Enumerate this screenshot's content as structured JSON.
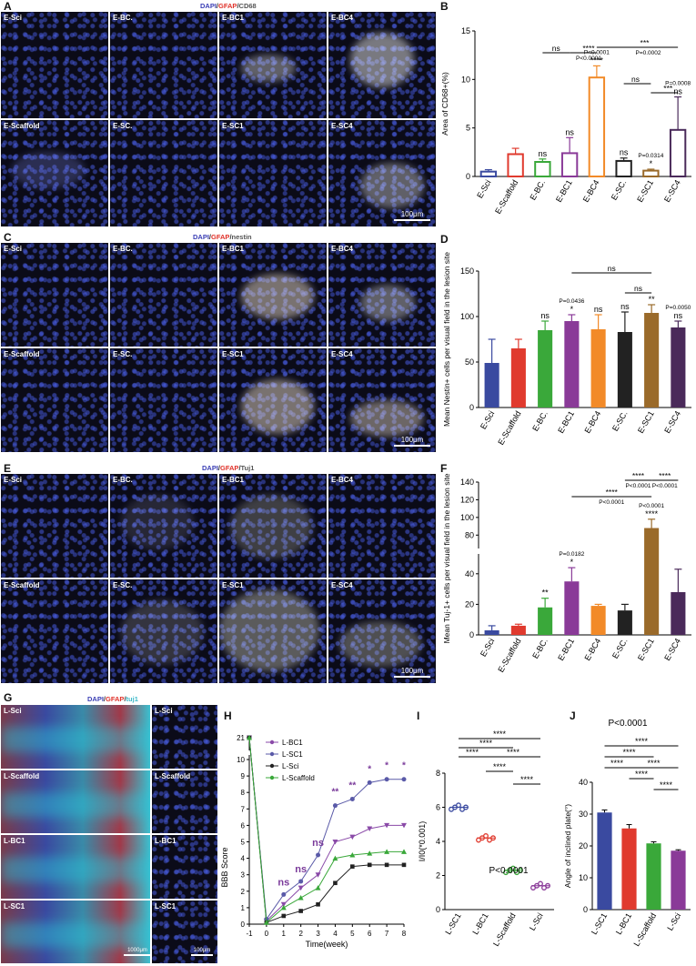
{
  "panels": {
    "A": {
      "letter": "A",
      "stain": [
        "DAPI",
        "GFAP",
        "CD68"
      ],
      "tiles": [
        "E-Sci",
        "E-BC.",
        "E-BC1",
        "E-BC4",
        "E-Scaffold",
        "E-SC.",
        "E-SC1",
        "E-SC4"
      ],
      "scale": "100μm"
    },
    "C": {
      "letter": "C",
      "stain": [
        "DAPI",
        "GFAP",
        "nestin"
      ],
      "tiles": [
        "E-Sci",
        "E-BC.",
        "E-BC1",
        "E-BC4",
        "E-Scaffold",
        "E-SC.",
        "E-SC1",
        "E-SC4"
      ],
      "scale": "100μm"
    },
    "E": {
      "letter": "E",
      "stain": [
        "DAPI",
        "GFAP",
        "Tuj1"
      ],
      "tiles": [
        "E-Sci",
        "E-BC.",
        "E-BC1",
        "E-BC4",
        "E-Scaffold",
        "E-SC.",
        "E-SC1",
        "E-SC4"
      ],
      "scale": "100μm"
    },
    "G": {
      "letter": "G",
      "stain": [
        "DAPI",
        "GFAP",
        "tuj1"
      ],
      "tiles": [
        "L-Sci",
        "L-Sci",
        "L-Scaffold",
        "L-Scaffold",
        "L-BC1",
        "L-BC1",
        "L-SC1",
        "L-SC1"
      ],
      "scale_left": "1000μm",
      "scale_right": "100μm"
    },
    "B": {
      "letter": "B"
    },
    "D": {
      "letter": "D"
    },
    "F": {
      "letter": "F"
    },
    "H": {
      "letter": "H"
    },
    "I": {
      "letter": "I"
    },
    "J": {
      "letter": "J"
    }
  },
  "chart_data": [
    {
      "id": "B",
      "type": "bar",
      "categories": [
        "E-Sci",
        "E-Scaffold",
        "E-BC.",
        "E-BC1",
        "E-BC4",
        "E-SC.",
        "E-SC1",
        "E-SC4"
      ],
      "values": [
        0.5,
        2.3,
        1.5,
        2.4,
        10.2,
        1.6,
        0.6,
        4.8
      ],
      "errors": [
        0.2,
        0.6,
        0.3,
        1.6,
        1.2,
        0.3,
        0.15,
        3.4
      ],
      "colors": [
        "#3a4aa0",
        "#e03a2e",
        "#3aa83a",
        "#8a3a98",
        "#f28a28",
        "#222222",
        "#9a6a2a",
        "#4a2a5a"
      ],
      "bar_labels": [
        "",
        "",
        "ns",
        "ns",
        "****",
        "ns",
        "*",
        "ns"
      ],
      "bar_pvals": [
        "",
        "",
        "",
        "",
        "P<0.0001",
        "",
        "P=0.0314",
        "P=0.0008"
      ],
      "ylabel": "Area of CD68+(%)",
      "ylim": [
        0,
        15
      ],
      "yticks": [
        0,
        5,
        10,
        15
      ],
      "brackets": [
        {
          "text": "ns",
          "p": ""
        },
        {
          "text": "****",
          "p": "P<0.0001"
        },
        {
          "text": "***",
          "p": "P=0.0002"
        },
        {
          "text": "ns",
          "p": ""
        },
        {
          "text": "***",
          "p": ""
        }
      ]
    },
    {
      "id": "D",
      "type": "bar",
      "categories": [
        "E-Sci",
        "E-Scaffold",
        "E-BC.",
        "E-BC1",
        "E-BC4",
        "E-SC.",
        "E-SC1",
        "E-SC4"
      ],
      "values": [
        49,
        65,
        85,
        95,
        86,
        83,
        104,
        88
      ],
      "errors": [
        26,
        10,
        10,
        7,
        16,
        22,
        9,
        7
      ],
      "colors": [
        "#3a4aa0",
        "#e03a2e",
        "#3aa83a",
        "#8a3a98",
        "#f28a28",
        "#222222",
        "#9a6a2a",
        "#4a2a5a"
      ],
      "bar_labels": [
        "",
        "",
        "ns",
        "*",
        "ns",
        "ns",
        "**",
        "ns"
      ],
      "bar_pvals": [
        "",
        "",
        "",
        "P=0.0436",
        "",
        "",
        "",
        "P=0.0050"
      ],
      "ylabel": "Mean Nestin+ cells per visual field in the lesion site",
      "ylim": [
        0,
        150
      ],
      "yticks": [
        0,
        50,
        100,
        150
      ],
      "brackets": [
        {
          "text": "ns",
          "p": ""
        },
        {
          "text": "ns",
          "p": ""
        }
      ]
    },
    {
      "id": "F",
      "type": "bar",
      "categories": [
        "E-Sci",
        "E-Scaffold",
        "E-BC.",
        "E-BC1",
        "E-BC4",
        "E-SC.",
        "E-SC1",
        "E-SC4"
      ],
      "values": [
        3,
        6,
        18,
        35,
        19,
        16,
        88,
        28
      ],
      "errors": [
        3,
        1,
        6,
        9,
        1,
        4,
        10,
        15
      ],
      "colors": [
        "#3a4aa0",
        "#e03a2e",
        "#3aa83a",
        "#8a3a98",
        "#f28a28",
        "#222222",
        "#9a6a2a",
        "#4a2a5a"
      ],
      "bar_labels": [
        "",
        "",
        "**",
        "*",
        "",
        "",
        "****",
        ""
      ],
      "bar_pvals": [
        "",
        "",
        "",
        "P=0.0182",
        "",
        "",
        "P<0.0001",
        ""
      ],
      "ylabel": "Mean Tuj-1+ cells per visual field in the lesion site",
      "ylim": [
        0,
        140
      ],
      "yticks": [
        0,
        20,
        40,
        80,
        100,
        120,
        140
      ],
      "brackets": [
        {
          "text": "****",
          "p": "P<0.0001"
        },
        {
          "text": "****",
          "p": "P<0.0001"
        },
        {
          "text": "****",
          "p": "P<0.0001"
        }
      ]
    },
    {
      "id": "H",
      "type": "line",
      "x": [
        -1,
        0,
        1,
        2,
        3,
        4,
        5,
        6,
        7,
        8
      ],
      "xlabel": "Time(week)",
      "ylabel": "BBB Score",
      "yticks": [
        0,
        1,
        2,
        3,
        4,
        5,
        6,
        7,
        8,
        9,
        10,
        21
      ],
      "series": [
        {
          "name": "L-BC1",
          "color": "#8a4aa8",
          "marker": "tri-down",
          "values": [
            21,
            0.2,
            1.2,
            2.2,
            3.0,
            5.0,
            5.3,
            5.8,
            6.0,
            6.0
          ]
        },
        {
          "name": "L-SC1",
          "color": "#5a5aa8",
          "marker": "circle",
          "values": [
            21,
            0.3,
            1.8,
            2.6,
            4.2,
            7.2,
            7.6,
            8.6,
            8.8,
            8.8
          ]
        },
        {
          "name": "L-Sci",
          "color": "#222222",
          "marker": "square",
          "values": [
            21,
            0.1,
            0.5,
            0.8,
            1.2,
            2.5,
            3.5,
            3.6,
            3.6,
            3.6
          ]
        },
        {
          "name": "L-Scaffold",
          "color": "#3aa83a",
          "marker": "triangle",
          "values": [
            21,
            0.1,
            1.0,
            1.6,
            2.2,
            4.0,
            4.2,
            4.3,
            4.4,
            4.4
          ]
        }
      ],
      "annotations": [
        "ns",
        "ns",
        "ns",
        "**",
        "**",
        "*",
        "*",
        "*"
      ]
    },
    {
      "id": "I",
      "type": "scatter",
      "categories": [
        "L-SC1",
        "L-BC1",
        "L-Scaffold",
        "L-Sci"
      ],
      "values": [
        6.0,
        4.2,
        2.3,
        1.4
      ],
      "colors": [
        "#3a4aa0",
        "#e03a2e",
        "#3aa83a",
        "#8a3a98"
      ],
      "ylabel": "I/I0(*0.001)",
      "ylim": [
        0,
        8
      ],
      "yticks": [
        0,
        2,
        4,
        6,
        8
      ],
      "stat": "P<0.0001",
      "brackets": [
        "****",
        "****",
        "****",
        "****",
        "****",
        "****"
      ]
    },
    {
      "id": "J",
      "type": "bar",
      "categories": [
        "L-SC1",
        "L-BC1",
        "L-Scaffold",
        "L-Sci"
      ],
      "values": [
        30.5,
        25.5,
        20.8,
        18.5
      ],
      "errors": [
        0.8,
        1.2,
        0.5,
        0.3
      ],
      "colors": [
        "#3a4aa0",
        "#e03a2e",
        "#3aa83a",
        "#8a3a98"
      ],
      "ylabel": "Angle of inclined plate(°)",
      "ylim": [
        0,
        40
      ],
      "yticks": [
        0,
        10,
        20,
        30,
        40
      ],
      "title": "P<0.0001",
      "brackets": [
        "****",
        "****",
        "****",
        "****",
        "****",
        "****"
      ]
    }
  ]
}
